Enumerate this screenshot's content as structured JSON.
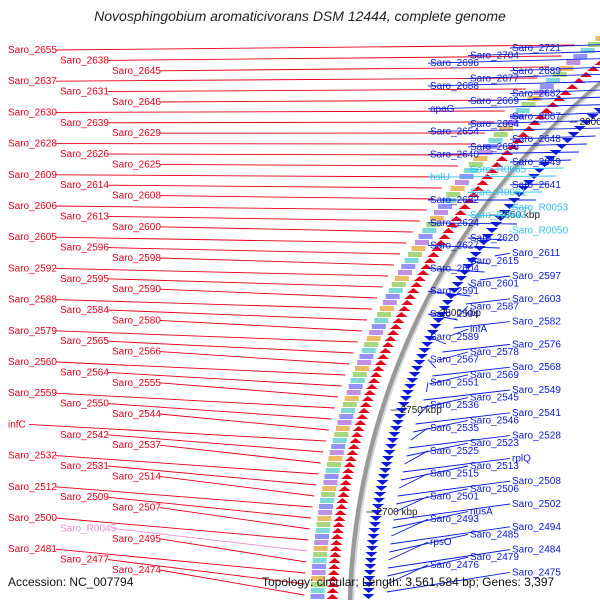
{
  "title": "Novosphingobium aromaticivorans DSM 12444, complete genome",
  "footer": {
    "accession": "Accession: NC_007794",
    "topology": "Topology: circular; Length: 3,561,584 bp; Genes: 3,397"
  },
  "colors": {
    "left_gene": "#e4001b",
    "right_gene": "#0a1ad6",
    "rna_cyan": "#33c3ee",
    "rna_pink": "#f08ad6",
    "backbone": "#9a9a9a"
  },
  "ticks": [
    "2950 kbp",
    "2900 kbp",
    "2850 kbp",
    "2800 kbp",
    "2750 kbp",
    "2700 kbp"
  ],
  "left_labels": [
    "Saro_2655",
    "Saro_2638",
    "Saro_2645",
    "Saro_2637",
    "Saro_2631",
    "Saro_2646",
    "Saro_2630",
    "Saro_2639",
    "Saro_2629",
    "Saro_2628",
    "Saro_2626",
    "Saro_2625",
    "Saro_2609",
    "Saro_2614",
    "Saro_2608",
    "Saro_2606",
    "Saro_2613",
    "Saro_2600",
    "Saro_2605",
    "Saro_2596",
    "Saro_2598",
    "Saro_2592",
    "Saro_2595",
    "Saro_2590",
    "Saro_2588",
    "Saro_2584",
    "Saro_2580",
    "Saro_2579",
    "Saro_2565",
    "Saro_2566",
    "Saro_2560",
    "Saro_2564",
    "Saro_2555",
    "Saro_2559",
    "Saro_2550",
    "Saro_2544",
    "infC",
    "Saro_2542",
    "Saro_2537",
    "Saro_2532",
    "Saro_2531",
    "Saro_2514",
    "Saro_2512",
    "Saro_2509",
    "Saro_2507",
    "Saro_2500",
    "Saro_R0045",
    "Saro_2495",
    "Saro_2481",
    "Saro_2477",
    "Saro_2474"
  ],
  "right_labels": [
    "Saro_2721",
    "Saro_2704",
    "Saro_2696",
    "Saro_2689",
    "Saro_2677",
    "Saro_2688",
    "Saro_2682",
    "Saro_2669",
    "apaG",
    "Saro_2667",
    "Saro_2664",
    "Saro_2654",
    "Saro_2648",
    "Saro_2656",
    "Saro_2640",
    "Saro_2649",
    "Saro_R0065",
    "hslU",
    "Saro_2641",
    "Saro_R0061",
    "Saro_2632",
    "Saro_R0053",
    "Saro_R0063",
    "Saro_2624",
    "Saro_R0050",
    "Saro_2620",
    "Saro_2627",
    "Saro_2611",
    "Saro_2615",
    "Saro_2604",
    "Saro_2597",
    "Saro_2601",
    "Saro_2591",
    "Saro_2603",
    "Saro_2587",
    "Saro_2594",
    "Saro_2582",
    "infA",
    "Saro_2589",
    "Saro_2576",
    "Saro_2578",
    "Saro_2567",
    "Saro_2568",
    "Saro_2569",
    "Saro_2551",
    "Saro_2549",
    "Saro_2545",
    "Saro_2536",
    "Saro_2541",
    "Saro_2546",
    "Saro_2535",
    "Saro_2528",
    "Saro_2523",
    "Saro_2525",
    "rplQ",
    "Saro_2513",
    "Saro_2515",
    "Saro_2508",
    "Saro_2506",
    "Saro_2501",
    "Saro_2502",
    "nusA",
    "Saro_2493",
    "Saro_2494",
    "Saro_2485",
    "rpsO",
    "Saro_2484",
    "Saro_2479",
    "Saro_2476",
    "Saro_2475"
  ]
}
